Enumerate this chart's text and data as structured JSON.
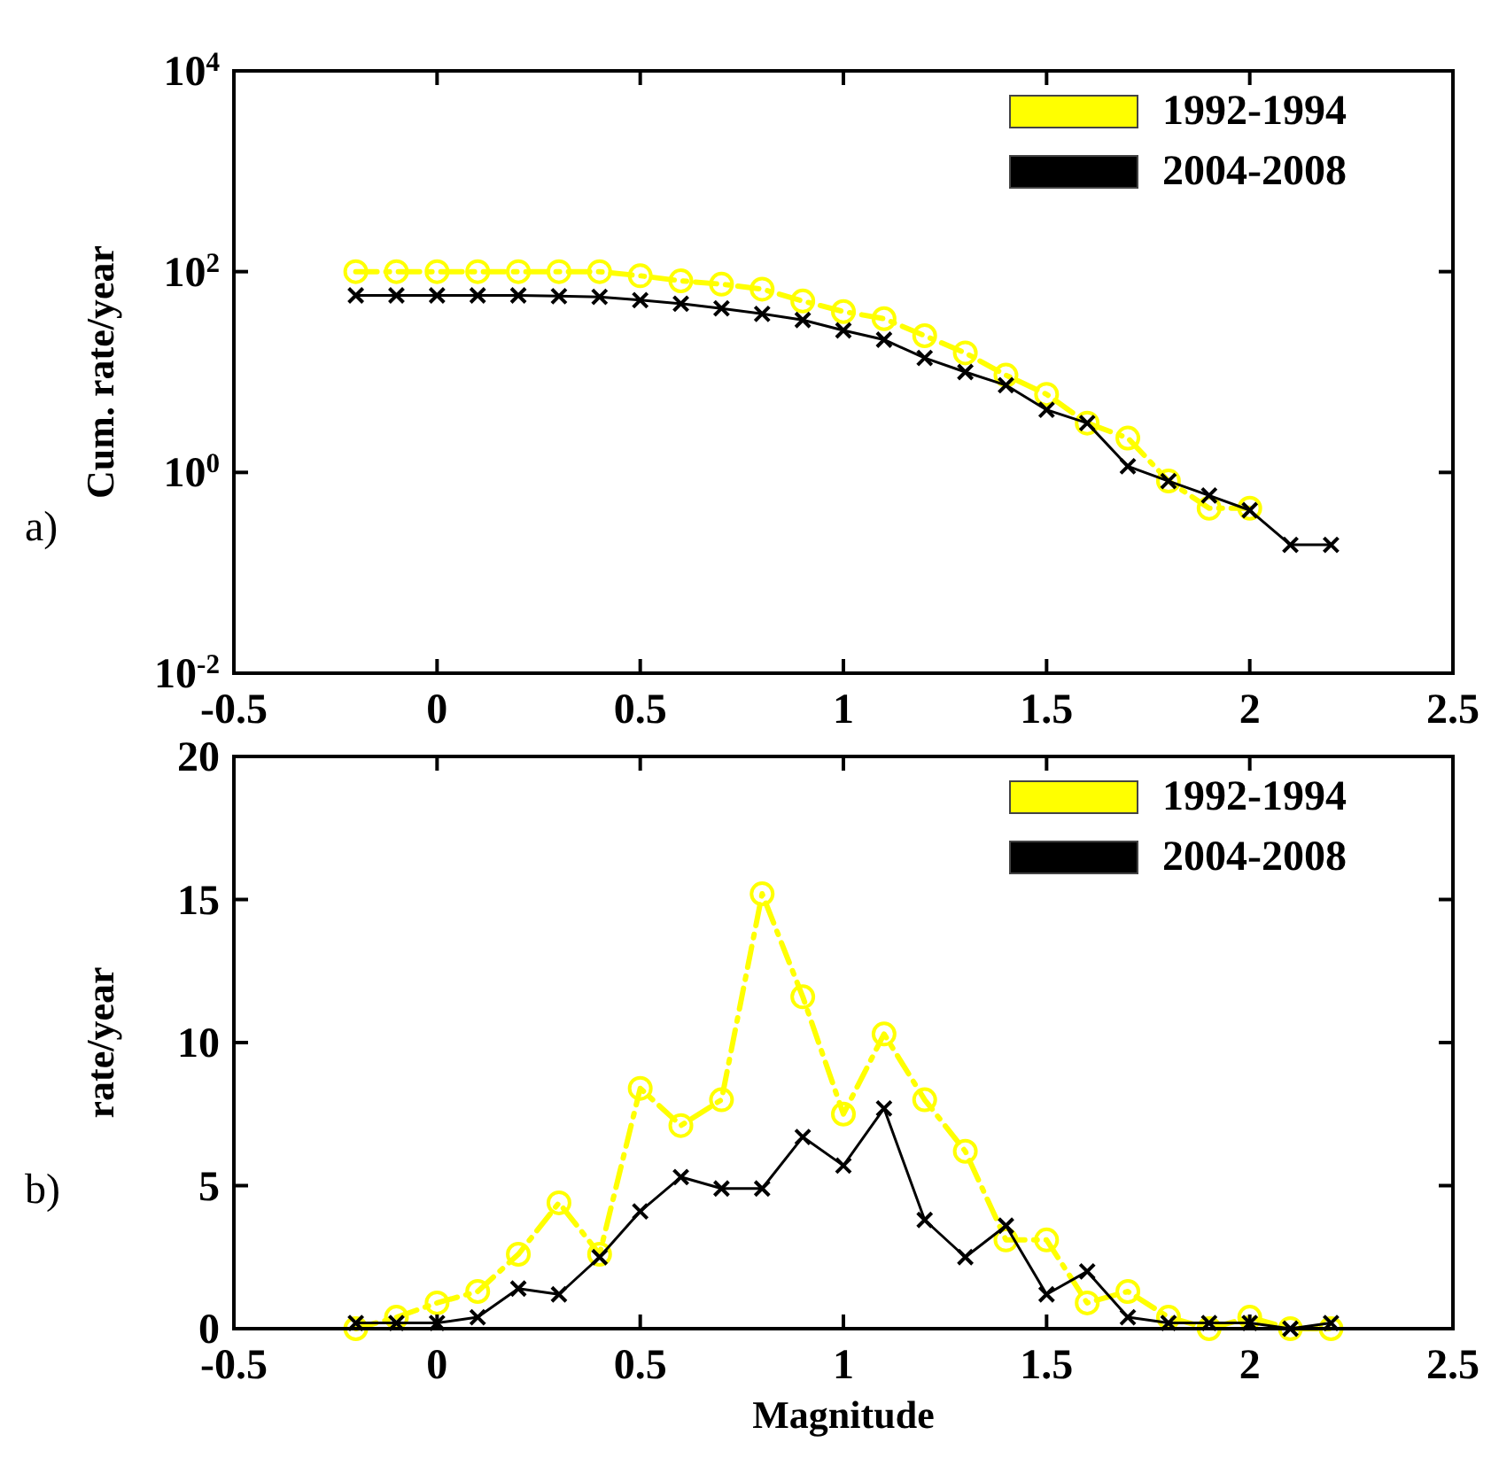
{
  "chart_data": [
    {
      "type": "line",
      "ylabel": "Cum. rate/year",
      "log": "y",
      "legend": "top right",
      "annotations": [
        "a)"
      ],
      "xlim": [
        -0.5,
        2.5
      ],
      "xticks": [
        -0.5,
        0,
        0.5,
        1,
        1.5,
        2,
        2.5
      ],
      "ylim": [
        0.01,
        10000
      ],
      "yticks": [
        {
          "value": 0.01,
          "label": "10$^{-2}$"
        },
        {
          "value": 1,
          "label": "10$^{0}$"
        },
        {
          "value": 100,
          "label": "10$^{2}$"
        },
        {
          "value": 10000,
          "label": "10$^{4}$"
        }
      ],
      "series": [
        {
          "name": "1992-1994",
          "color": "#ffff00",
          "marker": "circle",
          "line_style": "dashdot",
          "x": [
            -0.2,
            -0.1,
            0,
            0.1,
            0.2,
            0.3,
            0.4,
            0.5,
            0.6,
            0.7,
            0.8,
            0.9,
            1.0,
            1.1,
            1.2,
            1.3,
            1.4,
            1.5,
            1.6,
            1.7,
            1.8,
            1.9,
            2.0
          ],
          "values": [
            100,
            100,
            100,
            100,
            100,
            100,
            100,
            91,
            81,
            75,
            67,
            51,
            40,
            34,
            23,
            15.5,
            9.3,
            6.0,
            3.1,
            2.2,
            0.82,
            0.44,
            0.44
          ]
        },
        {
          "name": "2004-2008",
          "color": "#000000",
          "marker": "cross",
          "line_style": "solid",
          "x": [
            -0.2,
            -0.1,
            0,
            0.1,
            0.2,
            0.3,
            0.4,
            0.5,
            0.6,
            0.7,
            0.8,
            0.9,
            1.0,
            1.1,
            1.2,
            1.3,
            1.4,
            1.5,
            1.6,
            1.7,
            1.8,
            1.9,
            2.0,
            2.1,
            2.2
          ],
          "values": [
            58,
            58,
            58,
            58,
            58,
            57,
            56,
            52,
            48,
            43,
            38,
            33,
            26,
            21,
            13.8,
            10,
            7.4,
            4.2,
            3.1,
            1.15,
            0.82,
            0.59,
            0.42,
            0.19,
            0.19
          ]
        }
      ]
    },
    {
      "type": "line",
      "xlabel": "Magnitude",
      "ylabel": "rate/year",
      "legend": "top right",
      "annotations": [
        "b)"
      ],
      "xlim": [
        -0.5,
        2.5
      ],
      "xticks": [
        -0.5,
        0,
        0.5,
        1,
        1.5,
        2,
        2.5
      ],
      "ylim": [
        0,
        20
      ],
      "yticks": [
        0,
        5,
        10,
        15,
        20
      ],
      "series": [
        {
          "name": "1992-1994",
          "color": "#ffff00",
          "marker": "circle",
          "line_style": "dashdot",
          "x": [
            -0.2,
            -0.1,
            0,
            0.1,
            0.2,
            0.3,
            0.4,
            0.5,
            0.6,
            0.7,
            0.8,
            0.9,
            1.0,
            1.1,
            1.2,
            1.3,
            1.4,
            1.5,
            1.6,
            1.7,
            1.8,
            1.9,
            2.0,
            2.1,
            2.2
          ],
          "values": [
            0,
            0.4,
            0.9,
            1.3,
            2.6,
            4.4,
            2.6,
            8.4,
            7.1,
            8.0,
            15.2,
            11.6,
            7.5,
            10.3,
            8.0,
            6.2,
            3.1,
            3.1,
            0.9,
            1.3,
            0.4,
            0,
            0.4,
            0,
            0
          ]
        },
        {
          "name": "2004-2008",
          "color": "#000000",
          "marker": "cross",
          "line_style": "solid",
          "x": [
            -0.2,
            -0.1,
            0,
            0.1,
            0.2,
            0.3,
            0.4,
            0.5,
            0.6,
            0.7,
            0.8,
            0.9,
            1.0,
            1.1,
            1.2,
            1.3,
            1.4,
            1.5,
            1.6,
            1.7,
            1.8,
            1.9,
            2.0,
            2.1,
            2.2
          ],
          "values": [
            0.2,
            0.2,
            0.2,
            0.4,
            1.4,
            1.2,
            2.5,
            4.1,
            5.3,
            4.9,
            4.9,
            6.7,
            5.7,
            7.7,
            3.8,
            2.5,
            3.6,
            1.2,
            2.0,
            0.4,
            0.2,
            0.2,
            0.2,
            0,
            0.2
          ]
        }
      ]
    }
  ]
}
